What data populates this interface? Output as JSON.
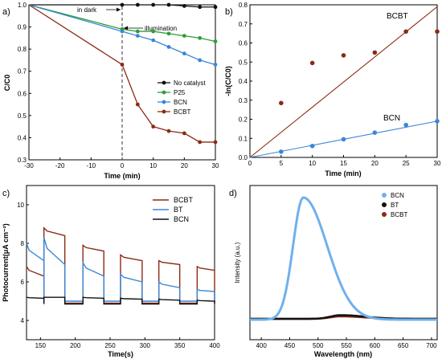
{
  "panels": {
    "a": "a)",
    "b": "b)",
    "c": "c)",
    "d": "d)"
  },
  "annotations": {
    "dark": "in dark",
    "illumination": "illumination"
  },
  "colors": {
    "black": "#111111",
    "green": "#2e9e34",
    "blue": "#3a86d8",
    "brown": "#8b2a14",
    "red": "#b83a2a",
    "lightblue": "#6fb1ec"
  },
  "chart_data": [
    {
      "id": "a",
      "type": "line",
      "xlabel": "Time (min)",
      "ylabel": "C/C0",
      "xlim": [
        -30,
        30
      ],
      "ylim": [
        0.3,
        1.0
      ],
      "xticks": [
        -30,
        -20,
        -10,
        0,
        10,
        20,
        30
      ],
      "yticks": [
        0.3,
        0.4,
        0.5,
        0.6,
        0.7,
        0.8,
        0.9,
        1.0
      ],
      "legend": "right",
      "series": [
        {
          "name": "No catalyst",
          "color": "#111111",
          "x": [
            -30,
            0,
            5,
            10,
            15,
            20,
            25,
            30
          ],
          "y": [
            1.0,
            1.0,
            1.0,
            1.0,
            1.0,
            0.995,
            0.99,
            0.99
          ]
        },
        {
          "name": "P25",
          "color": "#2e9e34",
          "x": [
            -30,
            0,
            5,
            10,
            15,
            20,
            25,
            30
          ],
          "y": [
            1.0,
            0.89,
            0.88,
            0.88,
            0.87,
            0.86,
            0.85,
            0.835
          ]
        },
        {
          "name": "BCN",
          "color": "#3a86d8",
          "x": [
            -30,
            0,
            5,
            10,
            15,
            20,
            25,
            30
          ],
          "y": [
            1.0,
            0.88,
            0.86,
            0.84,
            0.81,
            0.78,
            0.75,
            0.73
          ]
        },
        {
          "name": "BCBT",
          "color": "#8b2a14",
          "x": [
            -30,
            0,
            5,
            10,
            15,
            20,
            25,
            30
          ],
          "y": [
            1.0,
            0.73,
            0.55,
            0.45,
            0.43,
            0.42,
            0.38,
            0.38
          ]
        }
      ]
    },
    {
      "id": "b",
      "type": "scatter",
      "xlabel": "Time (min)",
      "ylabel": "-ln(C/C0)",
      "xlim": [
        0,
        30
      ],
      "ylim": [
        0,
        0.8
      ],
      "xticks": [
        0,
        5,
        10,
        15,
        20,
        25,
        30
      ],
      "yticks": [
        0.0,
        0.1,
        0.2,
        0.3,
        0.4,
        0.5,
        0.6,
        0.7,
        0.8
      ],
      "series": [
        {
          "name": "BCBT",
          "color": "#8b2a14",
          "x": [
            5,
            10,
            15,
            20,
            25,
            30
          ],
          "y": [
            0.285,
            0.495,
            0.535,
            0.55,
            0.66,
            0.66
          ],
          "fit": [
            [
              0,
              0
            ],
            [
              30,
              0.79
            ]
          ]
        },
        {
          "name": "BCN",
          "color": "#3a86d8",
          "x": [
            5,
            10,
            15,
            20,
            25,
            30
          ],
          "y": [
            0.03,
            0.06,
            0.095,
            0.13,
            0.17,
            0.19
          ],
          "fit": [
            [
              0,
              0
            ],
            [
              30,
              0.19
            ]
          ]
        }
      ]
    },
    {
      "id": "c",
      "type": "line",
      "xlabel": "Time(s)",
      "ylabel": "Photocurrent(μA cm⁻²)",
      "xlim": [
        130,
        400
      ],
      "ylim": [
        3,
        11
      ],
      "xticks": [
        150,
        200,
        250,
        300,
        350,
        400
      ],
      "yticks": [
        4,
        6,
        8,
        10
      ],
      "legend": "top-right",
      "periods": [
        {
          "on": 130,
          "off": 155
        },
        {
          "on": 155,
          "off": 185
        },
        {
          "on": 211,
          "off": 241
        },
        {
          "on": 265,
          "off": 296
        },
        {
          "on": 320,
          "off": 350
        },
        {
          "on": 375,
          "off": 400
        }
      ],
      "series": [
        {
          "name": "BCBT",
          "color": "#8b2a14",
          "on": [
            6.8,
            8.8,
            7.9,
            7.4,
            7.1,
            6.8
          ],
          "onEnd": [
            6.3,
            8.4,
            7.6,
            7.1,
            6.9,
            6.6
          ],
          "off": 4.9
        },
        {
          "name": "BT",
          "color": "#3a86d8",
          "on": [
            8.0,
            8.3,
            7.0,
            6.4,
            6.0,
            5.6
          ],
          "onEnd": [
            7.1,
            6.9,
            6.3,
            6.0,
            5.7,
            5.5
          ],
          "off": 5.0
        },
        {
          "name": "BCN",
          "color": "#111111",
          "on": [
            5.2,
            5.2,
            5.2,
            5.15,
            5.1,
            5.05
          ],
          "onEnd": [
            5.15,
            5.2,
            5.15,
            5.1,
            5.05,
            5.0
          ],
          "off": 4.85
        }
      ]
    },
    {
      "id": "d",
      "type": "line",
      "xlabel": "Wavelength (nm)",
      "ylabel": "Intensity (a.u.)",
      "xlim": [
        380,
        710
      ],
      "xticks": [
        400,
        450,
        500,
        550,
        600,
        650,
        700
      ],
      "legend": "top-right",
      "series": [
        {
          "name": "BCN",
          "color": "#6fb1ec",
          "peak": 474,
          "height": 1.0
        },
        {
          "name": "BT",
          "color": "#111111",
          "peak": 540,
          "height": 0.03
        },
        {
          "name": "BCBT",
          "color": "#8b2a14",
          "peak": 540,
          "height": 0.02
        }
      ]
    }
  ]
}
